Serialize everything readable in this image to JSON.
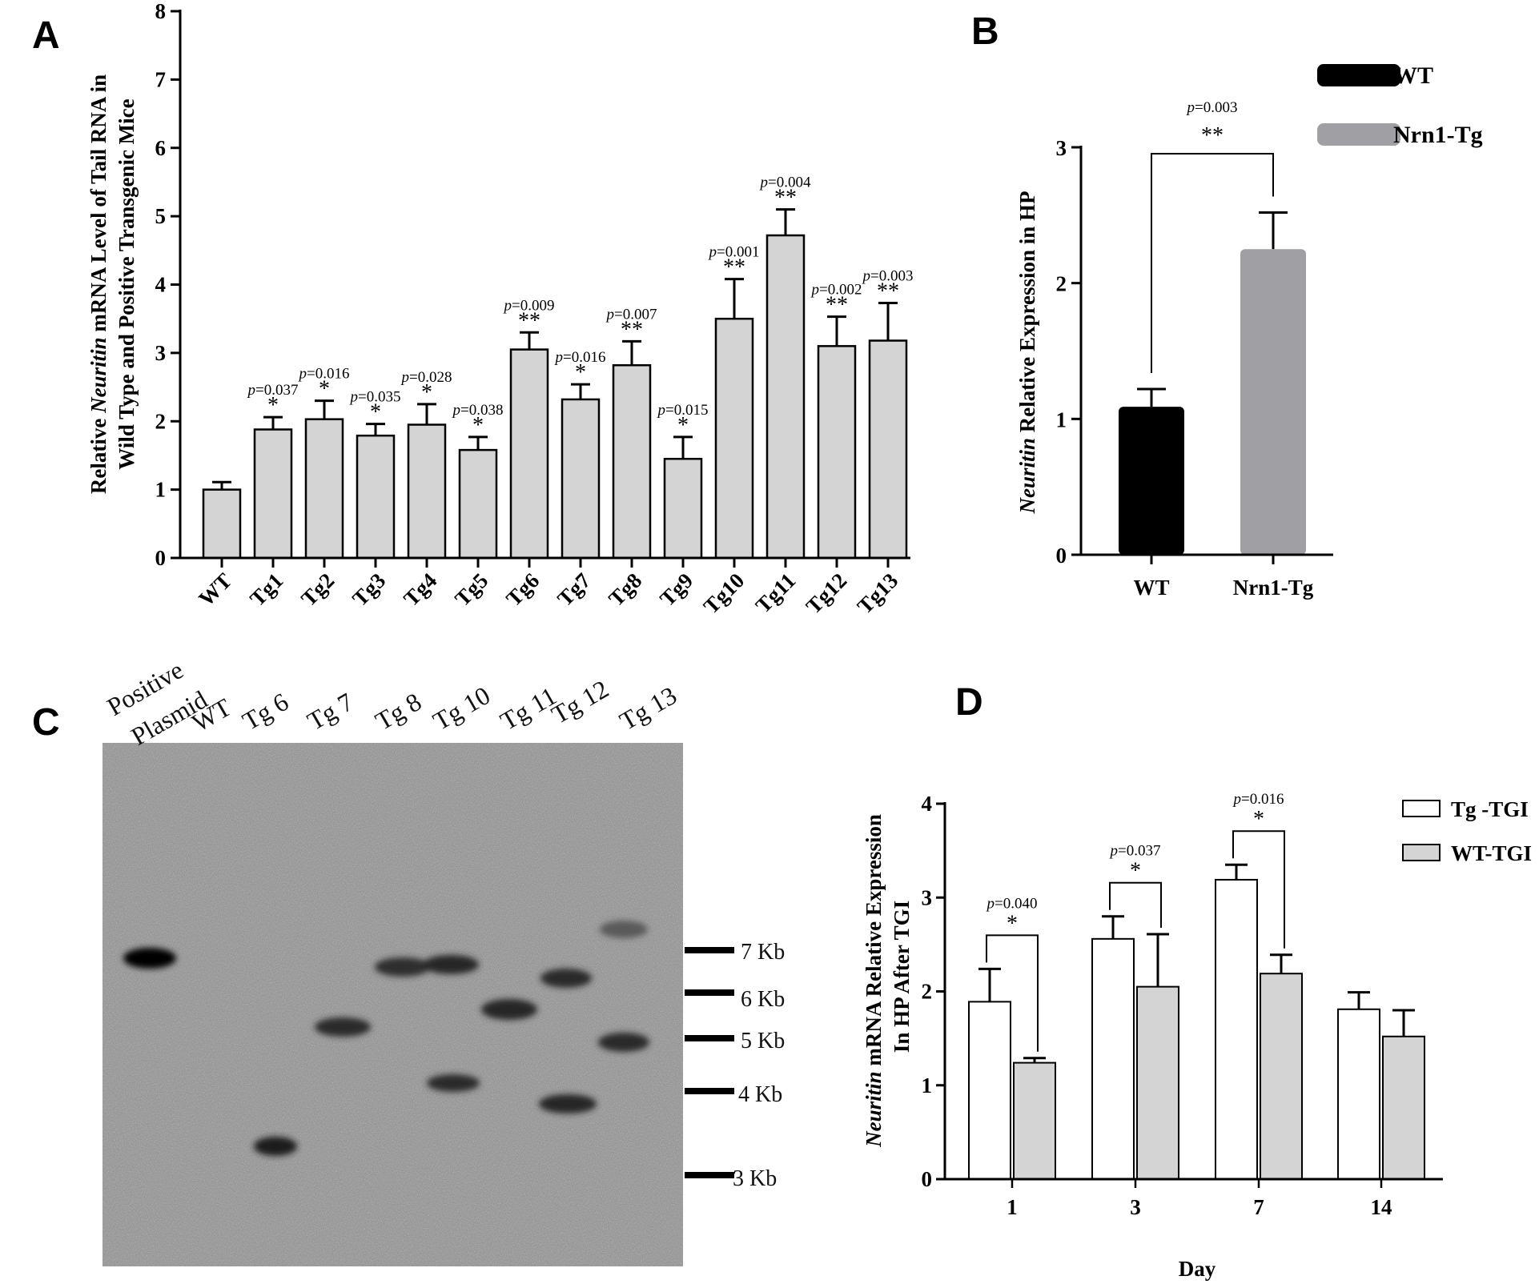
{
  "panels": {
    "a": "A",
    "b": "B",
    "c": "C",
    "d": "D"
  },
  "colors": {
    "bar_gray": "#d4d4d4",
    "wt_black": "#000000",
    "tg_gray": "#a0a0a4",
    "white": "#ffffff",
    "blot_bg": "#8f8f8f"
  },
  "chart_data": [
    {
      "type": "bar",
      "panel": "A",
      "ylabel": {
        "part1": "Relative ",
        "italic": "Neuritin",
        "part2": " mRNA Level of Tail RNA in",
        "line2": "Wild Type and Positive Transgenic Mice"
      },
      "ylim": [
        0,
        8
      ],
      "yticks": [
        "0",
        "1",
        "2",
        "3",
        "4",
        "5",
        "6",
        "7",
        "8"
      ],
      "categories": [
        "WT",
        "Tg1",
        "Tg2",
        "Tg3",
        "Tg4",
        "Tg5",
        "Tg6",
        "Tg7",
        "Tg8",
        "Tg9",
        "Tg10",
        "Tg11",
        "Tg12",
        "Tg13"
      ],
      "values": [
        1.0,
        1.88,
        2.03,
        1.79,
        1.95,
        1.58,
        3.05,
        2.32,
        2.82,
        1.45,
        3.5,
        4.72,
        3.1,
        3.18
      ],
      "errors": [
        0.11,
        0.18,
        0.27,
        0.17,
        0.3,
        0.19,
        0.25,
        0.22,
        0.35,
        0.32,
        0.58,
        0.38,
        0.43,
        0.55
      ],
      "annotations": [
        {
          "p": "=0.037",
          "stars": "*"
        },
        {
          "p": "=0.016",
          "stars": "*"
        },
        {
          "p": "=0.035",
          "stars": "*"
        },
        {
          "p": "=0.028",
          "stars": "*"
        },
        {
          "p": "=0.038",
          "stars": "*"
        },
        {
          "p": "=0.009",
          "stars": "**"
        },
        {
          "p": "=0.016",
          "stars": "*"
        },
        {
          "p": "=0.007",
          "stars": "**"
        },
        {
          "p": "=0.015",
          "stars": "*"
        },
        {
          "p": "=0.001",
          "stars": "**"
        },
        {
          "p": "=0.004",
          "stars": "**"
        },
        {
          "p": "=0.002",
          "stars": "**"
        },
        {
          "p": "=0.003",
          "stars": "**"
        }
      ],
      "p_letter": "p"
    },
    {
      "type": "bar",
      "panel": "B",
      "ylabel": {
        "italic": "Neuritin",
        "rest": " Relative Expression in HP"
      },
      "ylim": [
        0,
        3
      ],
      "yticks": [
        "0",
        "1",
        "2",
        "3"
      ],
      "categories": [
        "WT",
        "Nrn1-Tg"
      ],
      "values": [
        1.09,
        2.25
      ],
      "errors": [
        0.13,
        0.27
      ],
      "legend": [
        "WT",
        "Nrn1-Tg"
      ],
      "comparison": {
        "p": "=0.003",
        "stars": "**"
      }
    },
    {
      "type": "bar",
      "panel": "D",
      "ylabel": {
        "italic": "Neuritin",
        "rest": " mRNA Relative Expression",
        "line2": "In HP After TGI"
      },
      "xlabel": "Day",
      "ylim": [
        0,
        4
      ],
      "yticks": [
        "0",
        "1",
        "2",
        "3",
        "4"
      ],
      "categories": [
        "1",
        "3",
        "7",
        "14"
      ],
      "series": [
        {
          "name": "Tg -TGI",
          "values": [
            1.89,
            2.56,
            3.19,
            1.81
          ],
          "errors": [
            0.35,
            0.24,
            0.16,
            0.18
          ]
        },
        {
          "name": "WT-TGI",
          "values": [
            1.24,
            2.05,
            2.19,
            1.52
          ],
          "errors": [
            0.05,
            0.56,
            0.2,
            0.28
          ]
        }
      ],
      "comparisons": [
        {
          "p": "=0.040",
          "stars": "*"
        },
        {
          "p": "=0.037",
          "stars": "*"
        },
        {
          "p": "=0.016",
          "stars": "*"
        }
      ]
    }
  ],
  "blot": {
    "lane_labels": [
      "Positive",
      "Plasmid",
      "WT",
      "Tg 6",
      "Tg 7",
      "Tg 8",
      "Tg 10",
      "Tg 11",
      "Tg 12",
      "Tg 13"
    ],
    "markers": [
      "7 Kb",
      "6 Kb",
      "5 Kb",
      "4 Kb",
      "3 Kb"
    ]
  }
}
